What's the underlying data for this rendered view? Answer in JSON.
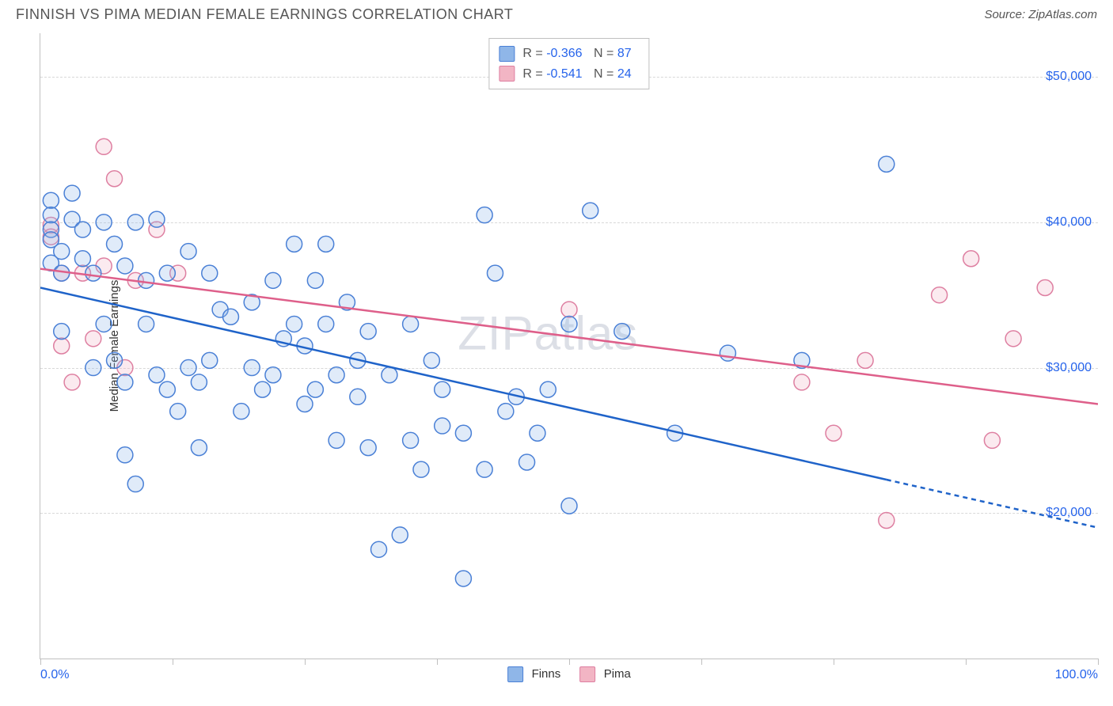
{
  "header": {
    "title": "FINNISH VS PIMA MEDIAN FEMALE EARNINGS CORRELATION CHART",
    "source": "Source: ZipAtlas.com"
  },
  "chart": {
    "type": "scatter",
    "ylabel": "Median Female Earnings",
    "watermark": "ZIPatlas",
    "xlim": [
      0,
      100
    ],
    "ylim": [
      10000,
      53000
    ],
    "xaxis_left_label": "0.0%",
    "xaxis_right_label": "100.0%",
    "ytick_values": [
      20000,
      30000,
      40000,
      50000
    ],
    "ytick_labels": [
      "$20,000",
      "$30,000",
      "$40,000",
      "$50,000"
    ],
    "xtick_positions": [
      0,
      12.5,
      25,
      37.5,
      50,
      62.5,
      75,
      87.5,
      100
    ],
    "grid_color": "#d8d8d8",
    "axis_color": "#c0c0c0",
    "tick_label_color": "#2563eb",
    "marker_radius": 10,
    "marker_stroke_width": 1.5,
    "marker_fill_opacity": 0.28,
    "trend_line_width": 2.5,
    "trend_dash": "6,5",
    "series": [
      {
        "name": "Finns",
        "fill": "#8fb6e8",
        "stroke": "#4a80d6",
        "line_color": "#1f63c9",
        "R": "-0.366",
        "N": "87",
        "trend": {
          "x1": 0,
          "y1": 35500,
          "x2": 100,
          "y2": 19000,
          "data_xmax": 80
        },
        "points": [
          [
            1,
            41500
          ],
          [
            1,
            40500
          ],
          [
            1,
            39500
          ],
          [
            1,
            38800
          ],
          [
            1,
            37200
          ],
          [
            2,
            36500
          ],
          [
            2,
            38000
          ],
          [
            2,
            32500
          ],
          [
            3,
            42000
          ],
          [
            3,
            40200
          ],
          [
            4,
            39500
          ],
          [
            4,
            37500
          ],
          [
            5,
            36500
          ],
          [
            5,
            30000
          ],
          [
            6,
            40000
          ],
          [
            6,
            33000
          ],
          [
            7,
            38500
          ],
          [
            7,
            30500
          ],
          [
            8,
            37000
          ],
          [
            8,
            29000
          ],
          [
            8,
            24000
          ],
          [
            9,
            40000
          ],
          [
            9,
            22000
          ],
          [
            10,
            36000
          ],
          [
            10,
            33000
          ],
          [
            11,
            40200
          ],
          [
            11,
            29500
          ],
          [
            12,
            36500
          ],
          [
            12,
            28500
          ],
          [
            13,
            27000
          ],
          [
            14,
            38000
          ],
          [
            14,
            30000
          ],
          [
            15,
            29000
          ],
          [
            15,
            24500
          ],
          [
            16,
            36500
          ],
          [
            16,
            30500
          ],
          [
            17,
            34000
          ],
          [
            18,
            33500
          ],
          [
            19,
            27000
          ],
          [
            20,
            34500
          ],
          [
            20,
            30000
          ],
          [
            21,
            28500
          ],
          [
            22,
            36000
          ],
          [
            22,
            29500
          ],
          [
            23,
            32000
          ],
          [
            24,
            38500
          ],
          [
            24,
            33000
          ],
          [
            25,
            31500
          ],
          [
            25,
            27500
          ],
          [
            26,
            36000
          ],
          [
            26,
            28500
          ],
          [
            27,
            38500
          ],
          [
            27,
            33000
          ],
          [
            28,
            29500
          ],
          [
            28,
            25000
          ],
          [
            29,
            34500
          ],
          [
            30,
            30500
          ],
          [
            30,
            28000
          ],
          [
            31,
            32500
          ],
          [
            31,
            24500
          ],
          [
            32,
            17500
          ],
          [
            33,
            29500
          ],
          [
            34,
            18500
          ],
          [
            35,
            25000
          ],
          [
            35,
            33000
          ],
          [
            36,
            23000
          ],
          [
            37,
            30500
          ],
          [
            38,
            26000
          ],
          [
            38,
            28500
          ],
          [
            40,
            25500
          ],
          [
            40,
            15500
          ],
          [
            42,
            40500
          ],
          [
            42,
            23000
          ],
          [
            43,
            36500
          ],
          [
            44,
            27000
          ],
          [
            45,
            28000
          ],
          [
            46,
            23500
          ],
          [
            47,
            25500
          ],
          [
            48,
            28500
          ],
          [
            50,
            33000
          ],
          [
            50,
            20500
          ],
          [
            52,
            40800
          ],
          [
            55,
            32500
          ],
          [
            60,
            25500
          ],
          [
            65,
            31000
          ],
          [
            72,
            30500
          ],
          [
            80,
            44000
          ]
        ]
      },
      {
        "name": "Pima",
        "fill": "#f2b5c4",
        "stroke": "#de7fa1",
        "line_color": "#de5f8a",
        "R": "-0.541",
        "N": "24",
        "trend": {
          "x1": 0,
          "y1": 36800,
          "x2": 100,
          "y2": 27500,
          "data_xmax": 100
        },
        "points": [
          [
            1,
            39800
          ],
          [
            1,
            39000
          ],
          [
            2,
            36500
          ],
          [
            2,
            31500
          ],
          [
            3,
            29000
          ],
          [
            4,
            36500
          ],
          [
            5,
            32000
          ],
          [
            6,
            45200
          ],
          [
            6,
            37000
          ],
          [
            7,
            43000
          ],
          [
            8,
            30000
          ],
          [
            9,
            36000
          ],
          [
            11,
            39500
          ],
          [
            13,
            36500
          ],
          [
            50,
            34000
          ],
          [
            72,
            29000
          ],
          [
            75,
            25500
          ],
          [
            78,
            30500
          ],
          [
            80,
            19500
          ],
          [
            85,
            35000
          ],
          [
            88,
            37500
          ],
          [
            90,
            25000
          ],
          [
            92,
            32000
          ],
          [
            95,
            35500
          ]
        ]
      }
    ],
    "bottom_legend": [
      {
        "label": "Finns",
        "fill": "#8fb6e8",
        "stroke": "#4a80d6"
      },
      {
        "label": "Pima",
        "fill": "#f2b5c4",
        "stroke": "#de7fa1"
      }
    ]
  }
}
